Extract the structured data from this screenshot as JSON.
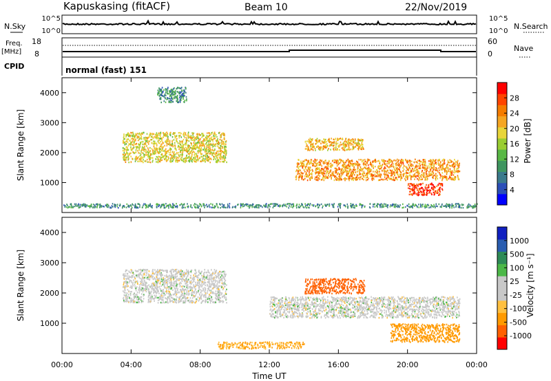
{
  "header": {
    "station": "Kapuskasing (fitACF)",
    "beam": "Beam 10",
    "date": "22/Nov/2019"
  },
  "noise_panel": {
    "left_label": "N.Sky",
    "right_label": "N.Search",
    "ticks_left": [
      "10^5",
      "10^0"
    ],
    "ticks_right": [
      "10^5",
      "10^0"
    ]
  },
  "freq_panel": {
    "left_label_1": "Freq.",
    "left_label_2": "[MHz]",
    "right_label": "Nave",
    "ticks_left": [
      "18",
      "8"
    ],
    "ticks_right": [
      "60",
      "0"
    ]
  },
  "cpid": {
    "label": "CPID",
    "value": "normal (fast) 151"
  },
  "colors": {
    "power_scale": [
      "#0000ff",
      "#2b4fb8",
      "#3a7a8c",
      "#3f9660",
      "#59b845",
      "#9acd32",
      "#e8d53a",
      "#f5a623",
      "#f57c00",
      "#ff4500",
      "#ff0000"
    ],
    "velocity_scale": [
      "#ff0000",
      "#ff6000",
      "#ff9a00",
      "#ffc040",
      "#c8c8c8",
      "#c8c8c8",
      "#4cb848",
      "#2e8b57",
      "#2a5db0",
      "#1020c0"
    ]
  },
  "chart_data": [
    {
      "type": "heatmap",
      "name": "power",
      "ylabel": "Slant Range [km]",
      "colorbar_label": "Power [dB]",
      "colorbar_ticks": [
        "4",
        "8",
        "12",
        "16",
        "20",
        "24",
        "28"
      ],
      "yticks": [
        "1000",
        "2000",
        "3000",
        "4000"
      ],
      "xticks": [
        "00:00",
        "04:00",
        "08:00",
        "12:00",
        "16:00",
        "20:00",
        "00:00"
      ],
      "ylim": [
        0,
        4500
      ],
      "features": [
        {
          "t0": 3.5,
          "t1": 9.5,
          "r0": 1700,
          "r1": 2700,
          "level": 18
        },
        {
          "t0": 5.5,
          "t1": 7.2,
          "r0": 3700,
          "r1": 4200,
          "level": 8
        },
        {
          "t0": 14.0,
          "t1": 17.5,
          "r0": 2100,
          "r1": 2500,
          "level": 20
        },
        {
          "t0": 13.5,
          "t1": 23.0,
          "r0": 1100,
          "r1": 1800,
          "level": 22
        },
        {
          "t0": 20.0,
          "t1": 22.0,
          "r0": 600,
          "r1": 1000,
          "level": 28
        },
        {
          "t0": 0.0,
          "t1": 24.0,
          "r0": 180,
          "r1": 320,
          "level": 8
        }
      ]
    },
    {
      "type": "heatmap",
      "name": "velocity",
      "ylabel": "Slant Range [km]",
      "colorbar_label": "Velocity [m s⁻¹]",
      "colorbar_ticks": [
        "1000",
        "500",
        "100",
        "25",
        "-25",
        "-100",
        "-500",
        "-1000"
      ],
      "yticks": [
        "1000",
        "2000",
        "3000",
        "4000"
      ],
      "xticks": [
        "00:00",
        "04:00",
        "08:00",
        "12:00",
        "16:00",
        "20:00",
        "00:00"
      ],
      "xlabel": "Time UT",
      "ylim": [
        0,
        4500
      ],
      "features": [
        {
          "t0": 3.5,
          "t1": 9.5,
          "r0": 1700,
          "r1": 2800,
          "level": 0
        },
        {
          "t0": 14.0,
          "t1": 17.5,
          "r0": 2000,
          "r1": 2500,
          "level": -200
        },
        {
          "t0": 12.0,
          "t1": 23.0,
          "r0": 1200,
          "r1": 1900,
          "level": 0
        },
        {
          "t0": 19.0,
          "t1": 23.0,
          "r0": 400,
          "r1": 1000,
          "level": -100
        },
        {
          "t0": 9.0,
          "t1": 14.0,
          "r0": 180,
          "r1": 400,
          "level": -60
        }
      ]
    }
  ]
}
